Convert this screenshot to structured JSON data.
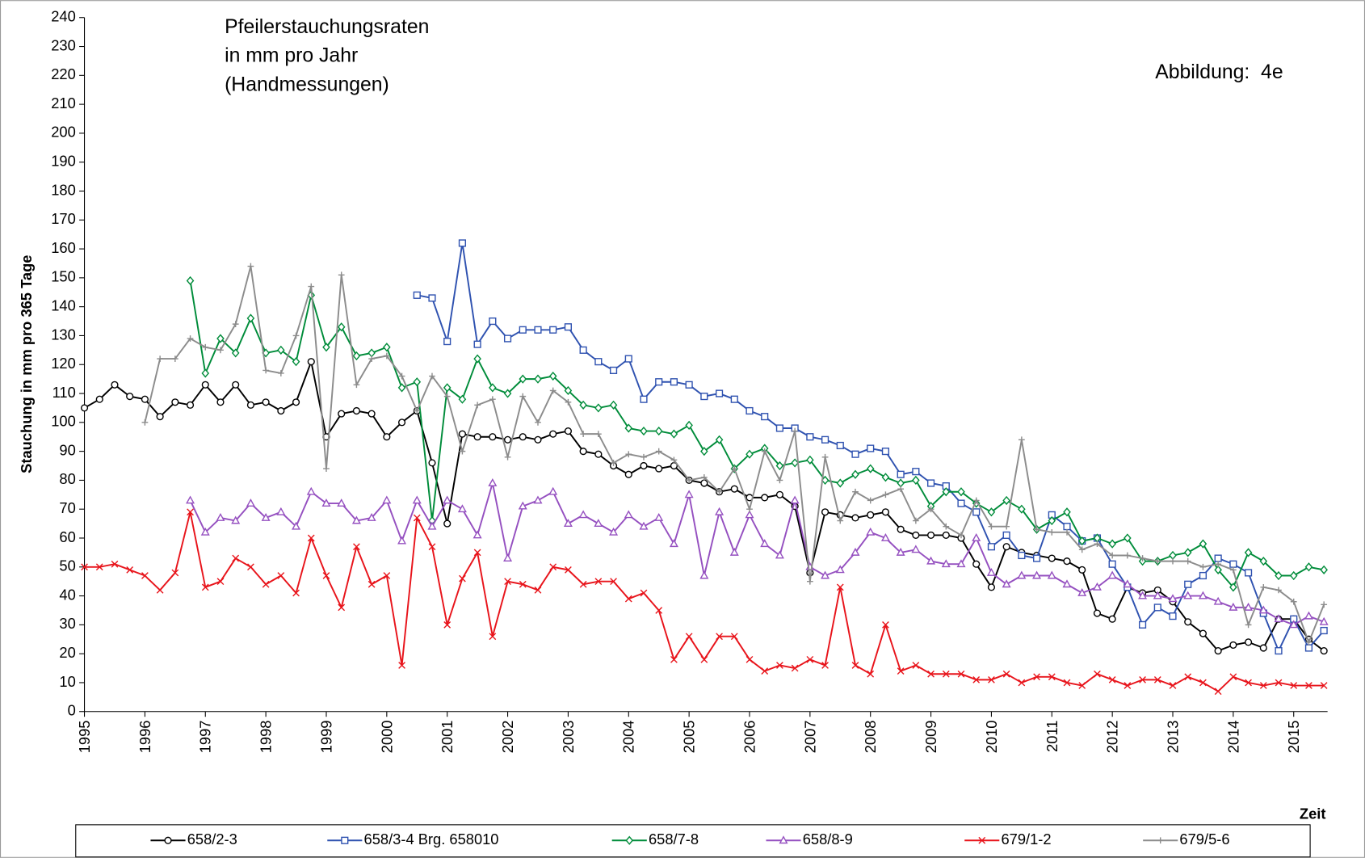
{
  "chart_data": {
    "type": "line",
    "title": [
      "Pfeilerstauchungsraten",
      "in mm pro Jahr",
      "(Handmessungen)"
    ],
    "annotation": "Abbildung:  4e",
    "x_label": "Zeit",
    "y_label": "Stauchung in mm pro 365 Tage",
    "xlim": [
      1995,
      2015.56
    ],
    "xticks": [
      1995,
      1996,
      1997,
      1998,
      1999,
      2000,
      2001,
      2002,
      2003,
      2004,
      2005,
      2006,
      2007,
      2008,
      2009,
      2010,
      2011,
      2012,
      2013,
      2014,
      2015
    ],
    "ylim": [
      0,
      240
    ],
    "yticks": [
      0,
      10,
      20,
      30,
      40,
      50,
      60,
      70,
      80,
      90,
      100,
      110,
      120,
      130,
      140,
      150,
      160,
      170,
      180,
      190,
      200,
      210,
      220,
      230,
      240
    ],
    "legend": "bottom",
    "x": [
      1995,
      1995.25,
      1995.5,
      1995.75,
      1996,
      1996.25,
      1996.5,
      1996.75,
      1997,
      1997.25,
      1997.5,
      1997.75,
      1998,
      1998.25,
      1998.5,
      1998.75,
      1999,
      1999.25,
      1999.5,
      1999.75,
      2000,
      2000.25,
      2000.5,
      2000.75,
      2001,
      2001.25,
      2001.5,
      2001.75,
      2002,
      2002.25,
      2002.5,
      2002.75,
      2003,
      2003.25,
      2003.5,
      2003.75,
      2004,
      2004.25,
      2004.5,
      2004.75,
      2005,
      2005.25,
      2005.5,
      2005.75,
      2006,
      2006.25,
      2006.5,
      2006.75,
      2007,
      2007.25,
      2007.5,
      2007.75,
      2008,
      2008.25,
      2008.5,
      2008.75,
      2009,
      2009.25,
      2009.5,
      2009.75,
      2010,
      2010.25,
      2010.5,
      2010.75,
      2011,
      2011.25,
      2011.5,
      2011.75,
      2012,
      2012.25,
      2012.5,
      2012.75,
      2013,
      2013.25,
      2013.5,
      2013.75,
      2014,
      2014.25,
      2014.5,
      2014.75,
      2015,
      2015.25,
      2015.5
    ],
    "series": [
      {
        "name": "658/2-3",
        "color": "#000000",
        "marker": "circle",
        "values": [
          105,
          108,
          113,
          109,
          108,
          102,
          107,
          106,
          113,
          107,
          113,
          106,
          107,
          104,
          107,
          121,
          95,
          103,
          104,
          103,
          95,
          100,
          104,
          86,
          65,
          96,
          95,
          95,
          94,
          95,
          94,
          96,
          97,
          90,
          89,
          85,
          82,
          85,
          84,
          85,
          80,
          79,
          76,
          77,
          74,
          74,
          75,
          71,
          48,
          69,
          68,
          67,
          68,
          69,
          63,
          61,
          61,
          61,
          60,
          51,
          43,
          57,
          55,
          54,
          53,
          52,
          49,
          34,
          32,
          43,
          41,
          42,
          38,
          31,
          27,
          21,
          23,
          24,
          22,
          32,
          32,
          25,
          21
        ]
      },
      {
        "name": "658/3-4 Brg. 658010",
        "color": "#2f52b0",
        "marker": "square",
        "values": [
          null,
          null,
          null,
          null,
          null,
          null,
          null,
          null,
          null,
          null,
          null,
          null,
          null,
          null,
          null,
          null,
          null,
          null,
          null,
          null,
          null,
          null,
          144,
          143,
          128,
          162,
          127,
          135,
          129,
          132,
          132,
          132,
          133,
          125,
          121,
          118,
          122,
          108,
          114,
          114,
          113,
          109,
          110,
          108,
          104,
          102,
          98,
          98,
          95,
          94,
          92,
          89,
          91,
          90,
          82,
          83,
          79,
          78,
          72,
          69,
          57,
          61,
          54,
          53,
          68,
          64,
          59,
          60,
          51,
          43,
          30,
          36,
          33,
          44,
          47,
          53,
          51,
          48,
          34,
          21,
          32,
          22,
          28
        ]
      },
      {
        "name": "658/7-8",
        "color": "#008c3a",
        "marker": "diamond",
        "values": [
          null,
          null,
          null,
          null,
          null,
          null,
          null,
          149,
          117,
          129,
          124,
          136,
          124,
          125,
          121,
          144,
          126,
          133,
          123,
          124,
          126,
          112,
          114,
          66,
          112,
          108,
          122,
          112,
          110,
          115,
          115,
          116,
          111,
          106,
          105,
          106,
          98,
          97,
          97,
          96,
          99,
          90,
          94,
          84,
          89,
          91,
          85,
          86,
          87,
          80,
          79,
          82,
          84,
          81,
          79,
          80,
          71,
          76,
          76,
          72,
          69,
          73,
          70,
          63,
          66,
          69,
          59,
          60,
          58,
          60,
          52,
          52,
          54,
          55,
          58,
          49,
          43,
          55,
          52,
          47,
          47,
          50,
          49
        ]
      },
      {
        "name": "658/8-9",
        "color": "#9550c0",
        "marker": "triangle",
        "values": [
          null,
          null,
          null,
          null,
          null,
          null,
          null,
          73,
          62,
          67,
          66,
          72,
          67,
          69,
          64,
          76,
          72,
          72,
          66,
          67,
          73,
          59,
          73,
          64,
          73,
          70,
          61,
          79,
          53,
          71,
          73,
          76,
          65,
          68,
          65,
          62,
          68,
          64,
          67,
          58,
          75,
          47,
          69,
          55,
          68,
          58,
          54,
          73,
          50,
          47,
          49,
          55,
          62,
          60,
          55,
          56,
          52,
          51,
          51,
          60,
          48,
          44,
          47,
          47,
          47,
          44,
          41,
          43,
          47,
          44,
          40,
          40,
          39,
          40,
          40,
          38,
          36,
          36,
          35,
          32,
          30,
          33,
          31
        ]
      },
      {
        "name": "679/1-2",
        "color": "#e8141b",
        "marker": "x",
        "values": [
          50,
          50,
          51,
          49,
          47,
          42,
          48,
          69,
          43,
          45,
          53,
          50,
          44,
          47,
          41,
          60,
          47,
          36,
          57,
          44,
          47,
          16,
          67,
          57,
          30,
          46,
          55,
          26,
          45,
          44,
          42,
          50,
          49,
          44,
          45,
          45,
          39,
          41,
          35,
          18,
          26,
          18,
          26,
          26,
          18,
          14,
          16,
          15,
          18,
          16,
          43,
          16,
          13,
          30,
          14,
          16,
          13,
          13,
          13,
          11,
          11,
          13,
          10,
          12,
          12,
          10,
          9,
          13,
          11,
          9,
          11,
          11,
          9,
          12,
          10,
          7,
          12,
          10,
          9,
          10,
          9,
          9,
          9
        ]
      },
      {
        "name": "679/5-6",
        "color": "#8c8c8c",
        "marker": "plus",
        "values": [
          null,
          null,
          null,
          null,
          100,
          122,
          122,
          129,
          126,
          125,
          134,
          154,
          118,
          117,
          130,
          147,
          84,
          151,
          113,
          122,
          123,
          116,
          104,
          116,
          109,
          90,
          106,
          108,
          88,
          109,
          100,
          111,
          107,
          96,
          96,
          86,
          89,
          88,
          90,
          87,
          80,
          81,
          76,
          84,
          70,
          90,
          80,
          97,
          45,
          88,
          66,
          76,
          73,
          75,
          77,
          66,
          70,
          64,
          61,
          73,
          64,
          64,
          94,
          63,
          62,
          62,
          56,
          58,
          54,
          54,
          53,
          52,
          52,
          52,
          50,
          51,
          49,
          30,
          43,
          42,
          38,
          24,
          37
        ]
      }
    ]
  }
}
